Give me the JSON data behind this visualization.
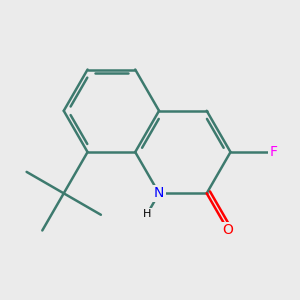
{
  "bg_color": "#ebebeb",
  "bond_color": "#3d7a6e",
  "bond_width": 1.8,
  "atom_colors": {
    "N": "#0000ff",
    "O": "#ff0000",
    "F": "#ff00ff",
    "C": "#000000",
    "H": "#000000"
  },
  "figsize": [
    3.0,
    3.0
  ],
  "dpi": 100
}
